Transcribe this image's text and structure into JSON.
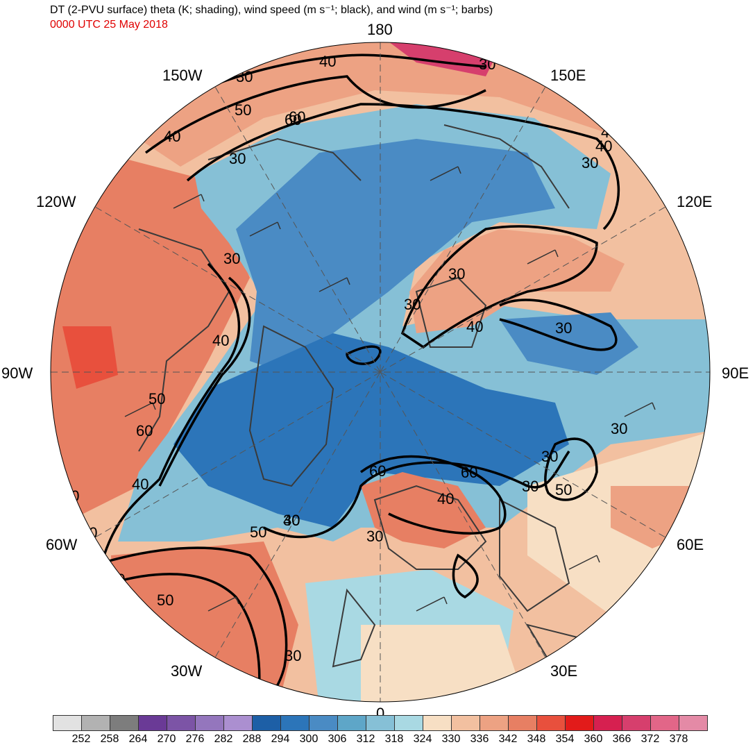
{
  "title": "DT (2-PVU surface) theta (K; shading), wind speed (m s⁻¹; black), and wind (m s⁻¹; barbs)",
  "valid_time": "0000 UTC 25 May 2018",
  "longitude_labels": [
    "180",
    "150E",
    "120E",
    "90E",
    "60E",
    "30E",
    "0",
    "30W",
    "60W",
    "90W",
    "120W",
    "150W"
  ],
  "contour_labels": [
    "40",
    "30",
    "50",
    "60",
    "40",
    "30",
    "30",
    "40",
    "30",
    "60",
    "30",
    "40",
    "30",
    "40",
    "30",
    "50",
    "60",
    "40",
    "30",
    "30",
    "40",
    "50",
    "60",
    "40",
    "30",
    "30",
    "30",
    "30",
    "50",
    "30",
    "30",
    "50",
    "30",
    "40",
    "30",
    "60"
  ],
  "colorbar": {
    "colors": [
      "#e2e2e2",
      "#b2b2b2",
      "#7d7d7d",
      "#6a3a96",
      "#7c54a6",
      "#9476bd",
      "#ab8fd0",
      "#1d5fa6",
      "#2c75b9",
      "#4a8bc4",
      "#5ea6c8",
      "#86c0d6",
      "#a9d9e3",
      "#f7dfc4",
      "#f2c0a0",
      "#eda283",
      "#e77f63",
      "#e8503d",
      "#e21b1a",
      "#d62050",
      "#d63f6d",
      "#e26688",
      "#e48aa6"
    ],
    "labels": [
      "252",
      "258",
      "264",
      "270",
      "276",
      "282",
      "288",
      "294",
      "300",
      "306",
      "312",
      "318",
      "324",
      "330",
      "336",
      "342",
      "348",
      "354",
      "360",
      "366",
      "372",
      "378"
    ]
  },
  "colors": {
    "land_warm": "#e77f63",
    "ocean_cool": "#4a8bc4",
    "contour": "#000000",
    "coast": "#3a3a3a",
    "time_text": "#e00000"
  }
}
